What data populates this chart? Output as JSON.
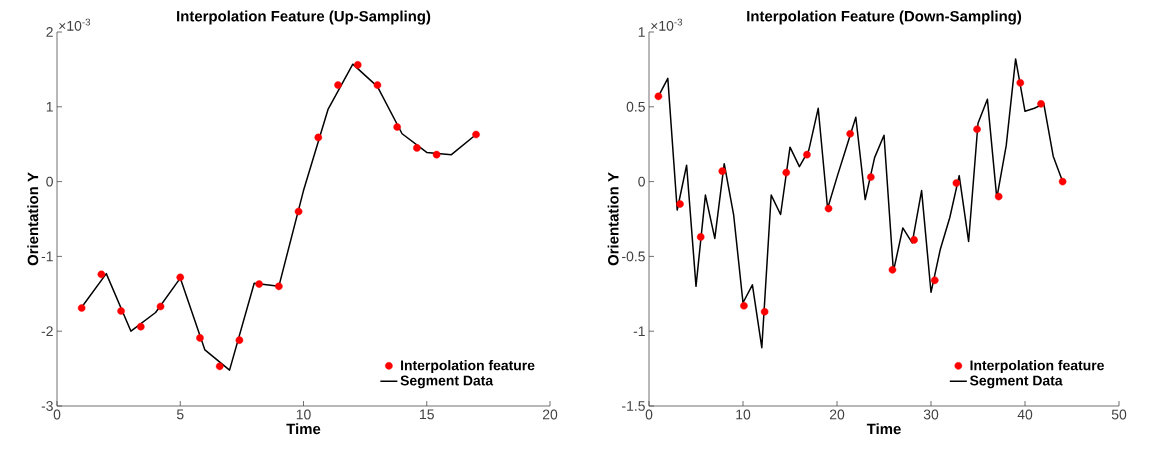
{
  "chart_data": [
    {
      "type": "line",
      "title": "Interpolation Feature (Up-Sampling)",
      "xlabel": "Time",
      "ylabel": "Orientation Y",
      "annotations": [
        "×10$^{-3}$"
      ],
      "xlim": [
        0,
        20
      ],
      "xticks": [
        0,
        5,
        10,
        15,
        20
      ],
      "ylim": [
        -3,
        2
      ],
      "yticks": [
        -3,
        -2,
        -1,
        0,
        1,
        2
      ],
      "grid": false,
      "legend": "bottom right",
      "series": [
        {
          "name": "Interpolation feature",
          "type": "scatter",
          "color": "#ff0000",
          "marker": "circle",
          "x": [
            1,
            1.8,
            2.6,
            3.4,
            4.2,
            5,
            5.8,
            6.6,
            7.4,
            8.2,
            9,
            9.8,
            10.6,
            11.4,
            12.2,
            13,
            13.8,
            14.6,
            15.4,
            17
          ],
          "values": [
            -1.69,
            -1.24,
            -1.73,
            -1.94,
            -1.67,
            -1.28,
            -2.09,
            -2.47,
            -2.12,
            -1.37,
            -1.4,
            -0.4,
            0.59,
            1.29,
            1.56,
            1.29,
            0.73,
            0.45,
            0.36,
            0.63
          ]
        },
        {
          "name": "Segment Data",
          "type": "line",
          "color": "#000000",
          "line_style": "solid",
          "x": [
            1,
            2,
            3,
            4,
            5,
            6,
            7,
            8,
            9,
            10,
            11,
            12,
            13,
            14,
            15,
            16,
            17
          ],
          "values": [
            -1.68,
            -1.23,
            -2.0,
            -1.75,
            -1.29,
            -2.25,
            -2.52,
            -1.36,
            -1.4,
            -0.12,
            0.97,
            1.57,
            1.27,
            0.64,
            0.39,
            0.36,
            0.63
          ]
        }
      ]
    },
    {
      "type": "line",
      "title": "Interpolation Feature (Down-Sampling)",
      "xlabel": "Time",
      "ylabel": "Orientation Y",
      "annotations": [
        "×10$^{-3}$"
      ],
      "xlim": [
        0,
        50
      ],
      "xticks": [
        0,
        10,
        20,
        30,
        40,
        50
      ],
      "ylim": [
        -1.5,
        1
      ],
      "yticks": [
        -1.5,
        -1,
        -0.5,
        0,
        0.5,
        1
      ],
      "grid": false,
      "legend": "bottom right",
      "series": [
        {
          "name": "Interpolation feature",
          "type": "scatter",
          "color": "#ff0000",
          "marker": "circle",
          "x": [
            1,
            3.3,
            5.5,
            7.8,
            10.1,
            12.3,
            14.6,
            16.8,
            19.1,
            21.4,
            23.6,
            25.9,
            28.2,
            30.4,
            32.7,
            34.9,
            37.2,
            39.5,
            41.7,
            44
          ],
          "values": [
            0.57,
            -0.15,
            -0.37,
            0.07,
            -0.83,
            -0.87,
            0.06,
            0.18,
            -0.18,
            0.32,
            0.03,
            -0.59,
            -0.39,
            -0.66,
            -0.01,
            0.35,
            -0.1,
            0.66,
            0.52,
            0.0
          ]
        },
        {
          "name": "Segment Data",
          "type": "line",
          "color": "#000000",
          "line_style": "solid",
          "x": [
            1,
            2,
            3,
            4,
            5,
            6,
            7,
            8,
            9,
            10,
            11,
            12,
            13,
            14,
            15,
            16,
            17,
            18,
            19,
            20,
            21,
            22,
            23,
            24,
            25,
            26,
            27,
            28,
            29,
            30,
            31,
            32,
            33,
            34,
            35,
            36,
            37,
            38,
            39,
            40,
            41,
            42,
            43,
            44
          ],
          "values": [
            0.57,
            0.69,
            -0.19,
            0.11,
            -0.7,
            -0.09,
            -0.38,
            0.12,
            -0.22,
            -0.81,
            -0.69,
            -1.11,
            -0.09,
            -0.22,
            0.23,
            0.1,
            0.21,
            0.49,
            -0.18,
            0.03,
            0.23,
            0.43,
            -0.12,
            0.16,
            0.31,
            -0.6,
            -0.31,
            -0.41,
            -0.06,
            -0.74,
            -0.45,
            -0.24,
            0.04,
            -0.4,
            0.39,
            0.55,
            -0.11,
            0.24,
            0.82,
            0.47,
            0.49,
            0.52,
            0.17,
            0.0
          ]
        }
      ]
    }
  ]
}
